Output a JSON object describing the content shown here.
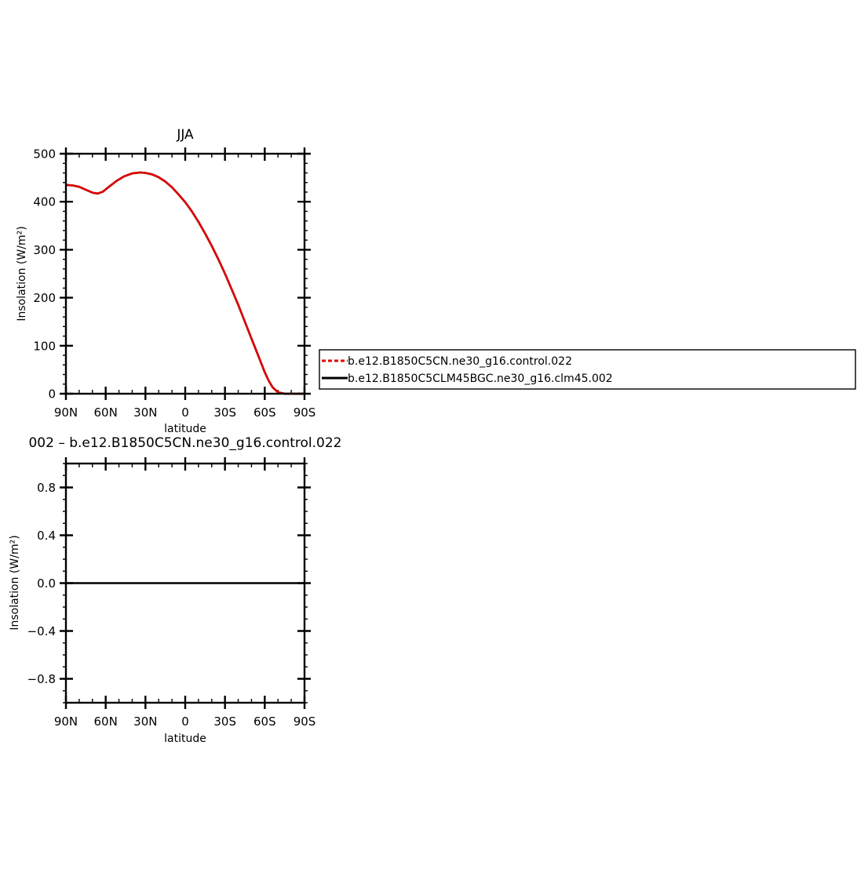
{
  "chart_data": [
    {
      "type": "line",
      "title": "JJA",
      "xlabel": "latitude",
      "ylabel": "Insolation (W/m²)",
      "x_tick_labels": [
        "90N",
        "60N",
        "30N",
        "0",
        "30S",
        "60S",
        "90S"
      ],
      "x_tick_values": [
        90,
        60,
        30,
        0,
        -30,
        -60,
        -90
      ],
      "xlim": [
        90,
        -90
      ],
      "ylim": [
        0,
        500
      ],
      "y_ticks": [
        0,
        100,
        200,
        300,
        400,
        500
      ],
      "y_tick_labels": [
        "0",
        "100",
        "200",
        "300",
        "400",
        "500"
      ],
      "grid": false,
      "legend_placement": "right",
      "x": [
        90,
        85,
        80,
        75,
        70,
        66,
        62,
        58,
        52,
        46,
        40,
        34,
        30,
        25,
        20,
        15,
        10,
        5,
        0,
        -5,
        -10,
        -15,
        -20,
        -25,
        -30,
        -35,
        -40,
        -45,
        -50,
        -55,
        -60,
        -63,
        -66,
        -70,
        -75,
        -80,
        -85,
        -90
      ],
      "series": [
        {
          "name": "b.e12.B1850C5CN.ne30_g16.control.022",
          "color": "#e00000",
          "dash": "dashed",
          "values": [
            435,
            434,
            431,
            425,
            419,
            417,
            421,
            430,
            443,
            453,
            459,
            461,
            460,
            457,
            451,
            442,
            430,
            415,
            399,
            380,
            358,
            334,
            308,
            280,
            250,
            218,
            185,
            150,
            115,
            80,
            45,
            27,
            13,
            3,
            0,
            0,
            0,
            0
          ]
        },
        {
          "name": "b.e12.B1850C5CLM45BGC.ne30_g16.clm45.002",
          "color": "#000000",
          "dash": "solid",
          "values": [
            435,
            434,
            431,
            425,
            419,
            417,
            421,
            430,
            443,
            453,
            459,
            461,
            460,
            457,
            451,
            442,
            430,
            415,
            399,
            380,
            358,
            334,
            308,
            280,
            250,
            218,
            185,
            150,
            115,
            80,
            45,
            27,
            13,
            3,
            0,
            0,
            0,
            0
          ]
        }
      ]
    },
    {
      "type": "line",
      "title": "002 – b.e12.B1850C5CN.ne30_g16.control.022",
      "xlabel": "latitude",
      "ylabel": "Insolation (W/m²)",
      "x_tick_labels": [
        "90N",
        "60N",
        "30N",
        "0",
        "30S",
        "60S",
        "90S"
      ],
      "x_tick_values": [
        90,
        60,
        30,
        0,
        -30,
        -60,
        -90
      ],
      "xlim": [
        90,
        -90
      ],
      "ylim": [
        -1,
        1
      ],
      "y_ticks": [
        -0.8,
        -0.4,
        0.0,
        0.4,
        0.8
      ],
      "y_tick_labels": [
        "−0.8",
        "−0.4",
        "0.0",
        "0.4",
        "0.8"
      ],
      "grid": false,
      "x": [
        90,
        -90
      ],
      "series": [
        {
          "color": "#000000",
          "values": [
            0,
            0
          ]
        }
      ]
    }
  ]
}
